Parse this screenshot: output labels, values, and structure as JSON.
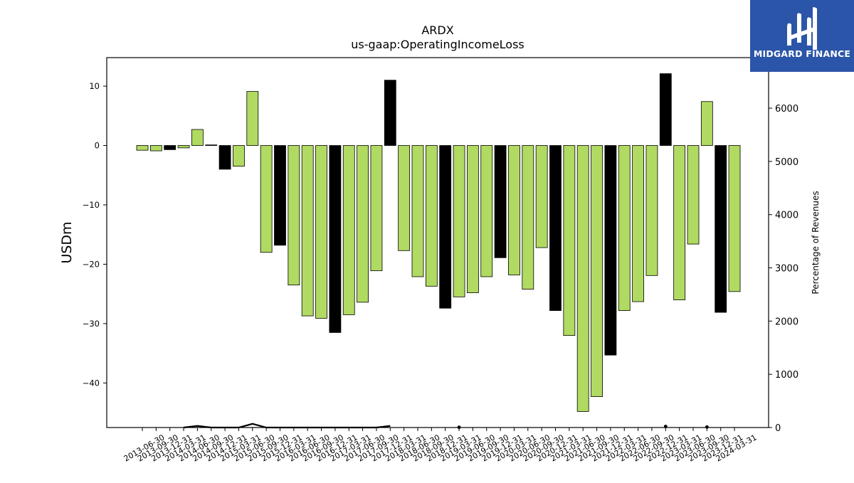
{
  "brand": {
    "name": "MIDGARD FINANCE",
    "color": "#2b55a8"
  },
  "chart_data": {
    "type": "bar",
    "title": "ARDX",
    "subtitle": "us-gaap:OperatingIncomeLoss",
    "ylabel": "USDm",
    "y2label": "Percentage of Revenues",
    "ylim": [
      -47.5,
      14.8
    ],
    "y2lim": [
      0,
      6950
    ],
    "yticks": [
      10,
      0,
      -10,
      -20,
      -30,
      -40
    ],
    "y2ticks": [
      0,
      1000,
      2000,
      3000,
      4000,
      5000,
      6000
    ],
    "colors": {
      "positive_growth": "#b0da62",
      "negative_growth": "#000000"
    },
    "categories": [
      "2013-06-30",
      "2013-09-30",
      "2013-12-31",
      "2014-03-31",
      "2014-06-30",
      "2014-09-30",
      "2014-12-31",
      "2015-03-31",
      "2015-06-30",
      "2015-09-30",
      "2015-12-31",
      "2016-03-31",
      "2016-06-30",
      "2016-09-30",
      "2016-12-31",
      "2017-03-31",
      "2017-06-30",
      "2017-09-30",
      "2017-12-31",
      "2018-03-31",
      "2018-06-30",
      "2018-09-30",
      "2018-12-31",
      "2019-03-31",
      "2019-06-30",
      "2019-09-30",
      "2019-12-31",
      "2020-03-31",
      "2020-06-30",
      "2020-09-30",
      "2020-12-31",
      "2021-03-31",
      "2021-06-30",
      "2021-09-30",
      "2021-12-31",
      "2022-03-31",
      "2022-06-30",
      "2022-09-30",
      "2022-12-31",
      "2023-03-31",
      "2023-06-30",
      "2023-09-30",
      "2023-12-31",
      "2024-03-31"
    ],
    "series": [
      {
        "values": [
          -0.8,
          -0.9,
          -0.7,
          -0.4,
          2.7,
          0.1,
          -4.0,
          -3.5,
          9.1,
          -18.0,
          -16.8,
          -23.5,
          -28.7,
          -29.1,
          -31.5,
          -28.5,
          -26.4,
          -21.1,
          11.0,
          -17.7,
          -22.1,
          -23.7,
          -27.4,
          -25.5,
          -24.8,
          -22.1,
          -18.9,
          -21.8,
          -24.2,
          -17.2,
          -27.8,
          -32.0,
          -44.8,
          -42.3,
          -35.3,
          -27.8,
          -26.3,
          -21.9,
          12.1,
          -26.0,
          -16.6,
          7.4,
          -28.1,
          -24.6
        ],
        "color_class": [
          "g",
          "g",
          "k",
          "g",
          "g",
          "k",
          "k",
          "g",
          "g",
          "g",
          "k",
          "g",
          "g",
          "g",
          "k",
          "g",
          "g",
          "g",
          "k",
          "g",
          "g",
          "g",
          "k",
          "g",
          "g",
          "g",
          "k",
          "g",
          "g",
          "g",
          "k",
          "g",
          "g",
          "g",
          "k",
          "g",
          "g",
          "g",
          "k",
          "g",
          "g",
          "g",
          "k",
          "g"
        ]
      },
      {
        "values": [
          null,
          null,
          null,
          0,
          30,
          0,
          0,
          0,
          70,
          0,
          0,
          0,
          0,
          0,
          0,
          0,
          0,
          0,
          30,
          null,
          null,
          null,
          null,
          5,
          null,
          null,
          null,
          null,
          null,
          null,
          null,
          null,
          null,
          null,
          null,
          null,
          null,
          null,
          20,
          null,
          null,
          10,
          null,
          null
        ]
      }
    ]
  }
}
